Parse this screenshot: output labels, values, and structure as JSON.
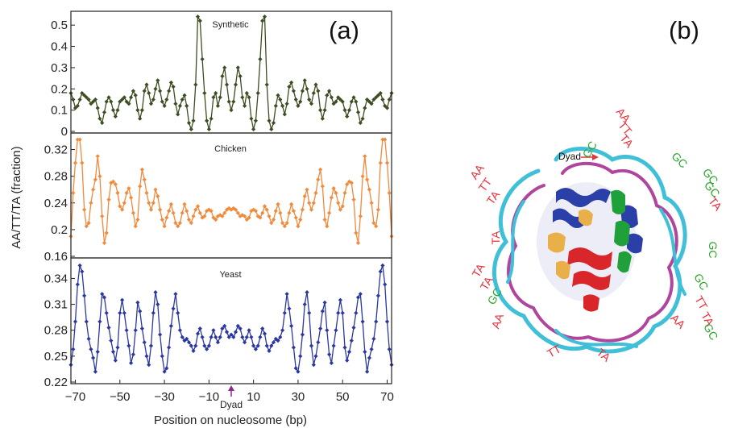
{
  "figure": {
    "panel_a_label": "(a)",
    "panel_b_label": "(b)",
    "dyad_axis_label": "Dyad",
    "dyad_structure_label": "Dyad"
  },
  "colors": {
    "synthetic": "#3d4d22",
    "chicken": "#f08a3c",
    "yeast": "#2b37a0",
    "dyad_arrow": "#8b2a8b",
    "dna_strand_1": "#3fbfd8",
    "dna_strand_2": "#b0459e",
    "text_red": "#e8313d",
    "text_green": "#2aa42a"
  },
  "chart_data": {
    "type": "line",
    "xlabel": "Position on nucleosome (bp)",
    "ylabel": "AA/TT/TA (fraction)",
    "xlim": [
      -72,
      72
    ],
    "xticks": [
      -70,
      -50,
      -30,
      -10,
      10,
      30,
      50,
      70
    ],
    "xtick_labels": [
      "−70",
      "−50",
      "−30",
      "−10",
      "10",
      "30",
      "50",
      "70"
    ],
    "panels": [
      {
        "name": "Synthetic",
        "ylim": [
          0,
          0.55
        ],
        "yticks": [
          0,
          0.1,
          0.2,
          0.3,
          0.4,
          0.5
        ],
        "ytick_labels": [
          "0",
          "0.1",
          "0.2",
          "0.3",
          "0.4",
          "0.5"
        ],
        "x": [
          -72,
          -71,
          -70,
          -69,
          -68,
          -67,
          -66,
          -65,
          -64,
          -63,
          -62,
          -61,
          -60,
          -59,
          -58,
          -57,
          -56,
          -55,
          -54,
          -53,
          -52,
          -51,
          -50,
          -49,
          -48,
          -47,
          -46,
          -45,
          -44,
          -43,
          -42,
          -41,
          -40,
          -39,
          -38,
          -37,
          -36,
          -35,
          -34,
          -33,
          -32,
          -31,
          -30,
          -29,
          -28,
          -27,
          -26,
          -25,
          -24,
          -23,
          -22,
          -21,
          -20,
          -19,
          -18,
          -17,
          -16,
          -15,
          -14,
          -13,
          -12,
          -11,
          -10,
          -9,
          -8,
          -7,
          -6,
          -5,
          -4,
          -3,
          -2,
          -1,
          0,
          1,
          2,
          3,
          4,
          5,
          6,
          7,
          8,
          9,
          10,
          11,
          12,
          13,
          14,
          15,
          16,
          17,
          18,
          19,
          20,
          21,
          22,
          23,
          24,
          25,
          26,
          27,
          28,
          29,
          30,
          31,
          32,
          33,
          34,
          35,
          36,
          37,
          38,
          39,
          40,
          41,
          42,
          43,
          44,
          45,
          46,
          47,
          48,
          49,
          50,
          51,
          52,
          53,
          54,
          55,
          56,
          57,
          58,
          59,
          60,
          61,
          62,
          63,
          64,
          65,
          66,
          67,
          68,
          69,
          70,
          71,
          72
        ],
        "y": [
          0.18,
          0.15,
          0.11,
          0.12,
          0.15,
          0.18,
          0.17,
          0.16,
          0.15,
          0.13,
          0.14,
          0.15,
          0.11,
          0.06,
          0.04,
          0.09,
          0.14,
          0.16,
          0.14,
          0.1,
          0.07,
          0.1,
          0.14,
          0.15,
          0.16,
          0.14,
          0.13,
          0.16,
          0.19,
          0.17,
          0.1,
          0.06,
          0.1,
          0.19,
          0.22,
          0.18,
          0.13,
          0.15,
          0.2,
          0.24,
          0.19,
          0.14,
          0.12,
          0.15,
          0.19,
          0.23,
          0.21,
          0.13,
          0.08,
          0.12,
          0.15,
          0.17,
          0.12,
          0.04,
          0.01,
          0.05,
          0.22,
          0.54,
          0.52,
          0.34,
          0.18,
          0.05,
          0.01,
          0.06,
          0.16,
          0.18,
          0.12,
          0.16,
          0.26,
          0.3,
          0.22,
          0.14,
          0.1,
          0.14,
          0.22,
          0.3,
          0.26,
          0.16,
          0.12,
          0.18,
          0.16,
          0.06,
          0.01,
          0.05,
          0.18,
          0.34,
          0.52,
          0.54,
          0.22,
          0.05,
          0.01,
          0.04,
          0.12,
          0.17,
          0.15,
          0.12,
          0.08,
          0.13,
          0.21,
          0.23,
          0.19,
          0.15,
          0.12,
          0.14,
          0.19,
          0.24,
          0.2,
          0.15,
          0.13,
          0.18,
          0.22,
          0.19,
          0.1,
          0.06,
          0.1,
          0.17,
          0.19,
          0.16,
          0.13,
          0.14,
          0.16,
          0.15,
          0.14,
          0.1,
          0.07,
          0.1,
          0.14,
          0.16,
          0.14,
          0.09,
          0.04,
          0.06,
          0.11,
          0.15,
          0.14,
          0.13,
          0.15,
          0.16,
          0.17,
          0.18,
          0.15,
          0.12,
          0.11,
          0.15,
          0.18
        ]
      },
      {
        "name": "Chicken",
        "ylim": [
          0.16,
          0.34
        ],
        "yticks": [
          0.16,
          0.2,
          0.24,
          0.28,
          0.32
        ],
        "ytick_labels": [
          "0.16",
          "0.2",
          "0.24",
          "0.28",
          "0.32"
        ],
        "x": [
          -72,
          -71,
          -70,
          -69,
          -68,
          -67,
          -66,
          -65,
          -64,
          -63,
          -62,
          -61,
          -60,
          -59,
          -58,
          -57,
          -56,
          -55,
          -54,
          -53,
          -52,
          -51,
          -50,
          -49,
          -48,
          -47,
          -46,
          -45,
          -44,
          -43,
          -42,
          -41,
          -40,
          -39,
          -38,
          -37,
          -36,
          -35,
          -34,
          -33,
          -32,
          -31,
          -30,
          -29,
          -28,
          -27,
          -26,
          -25,
          -24,
          -23,
          -22,
          -21,
          -20,
          -19,
          -18,
          -17,
          -16,
          -15,
          -14,
          -13,
          -12,
          -11,
          -10,
          -9,
          -8,
          -7,
          -6,
          -5,
          -4,
          -3,
          -2,
          -1,
          0,
          1,
          2,
          3,
          4,
          5,
          6,
          7,
          8,
          9,
          10,
          11,
          12,
          13,
          14,
          15,
          16,
          17,
          18,
          19,
          20,
          21,
          22,
          23,
          24,
          25,
          26,
          27,
          28,
          29,
          30,
          31,
          32,
          33,
          34,
          35,
          36,
          37,
          38,
          39,
          40,
          41,
          42,
          43,
          44,
          45,
          46,
          47,
          48,
          49,
          50,
          51,
          52,
          53,
          54,
          55,
          56,
          57,
          58,
          59,
          60,
          61,
          62,
          63,
          64,
          65,
          66,
          67,
          68,
          69,
          70,
          71,
          72
        ],
        "y": [
          0.19,
          0.255,
          0.3,
          0.335,
          0.335,
          0.3,
          0.23,
          0.205,
          0.21,
          0.24,
          0.26,
          0.275,
          0.31,
          0.28,
          0.22,
          0.18,
          0.195,
          0.245,
          0.27,
          0.272,
          0.268,
          0.255,
          0.235,
          0.23,
          0.24,
          0.255,
          0.262,
          0.248,
          0.225,
          0.205,
          0.215,
          0.265,
          0.29,
          0.275,
          0.255,
          0.24,
          0.23,
          0.24,
          0.26,
          0.25,
          0.23,
          0.215,
          0.205,
          0.218,
          0.228,
          0.238,
          0.225,
          0.21,
          0.205,
          0.21,
          0.225,
          0.238,
          0.228,
          0.215,
          0.21,
          0.22,
          0.23,
          0.235,
          0.225,
          0.218,
          0.22,
          0.228,
          0.23,
          0.228,
          0.218,
          0.215,
          0.22,
          0.222,
          0.22,
          0.225,
          0.23,
          0.232,
          0.23,
          0.232,
          0.23,
          0.225,
          0.22,
          0.222,
          0.22,
          0.215,
          0.218,
          0.228,
          0.23,
          0.228,
          0.22,
          0.218,
          0.225,
          0.235,
          0.23,
          0.22,
          0.21,
          0.215,
          0.228,
          0.238,
          0.225,
          0.21,
          0.205,
          0.21,
          0.225,
          0.238,
          0.228,
          0.218,
          0.205,
          0.215,
          0.23,
          0.25,
          0.26,
          0.24,
          0.23,
          0.24,
          0.255,
          0.275,
          0.29,
          0.265,
          0.215,
          0.205,
          0.225,
          0.248,
          0.262,
          0.255,
          0.24,
          0.23,
          0.235,
          0.255,
          0.268,
          0.272,
          0.27,
          0.245,
          0.195,
          0.18,
          0.22,
          0.28,
          0.31,
          0.275,
          0.26,
          0.24,
          0.21,
          0.205,
          0.23,
          0.3,
          0.335,
          0.335,
          0.3,
          0.255,
          0.19
        ]
      },
      {
        "name": "Yeast",
        "ylim": [
          0.22,
          0.36
        ],
        "yticks": [
          0.22,
          0.25,
          0.28,
          0.31,
          0.34
        ],
        "ytick_labels": [
          "0.22",
          "0.25",
          "0.28",
          "0.31",
          "0.34"
        ],
        "x": [
          -72,
          -71,
          -70,
          -69,
          -68,
          -67,
          -66,
          -65,
          -64,
          -63,
          -62,
          -61,
          -60,
          -59,
          -58,
          -57,
          -56,
          -55,
          -54,
          -53,
          -52,
          -51,
          -50,
          -49,
          -48,
          -47,
          -46,
          -45,
          -44,
          -43,
          -42,
          -41,
          -40,
          -39,
          -38,
          -37,
          -36,
          -35,
          -34,
          -33,
          -32,
          -31,
          -30,
          -29,
          -28,
          -27,
          -26,
          -25,
          -24,
          -23,
          -22,
          -21,
          -20,
          -19,
          -18,
          -17,
          -16,
          -15,
          -14,
          -13,
          -12,
          -11,
          -10,
          -9,
          -8,
          -7,
          -6,
          -5,
          -4,
          -3,
          -2,
          -1,
          0,
          1,
          2,
          3,
          4,
          5,
          6,
          7,
          8,
          9,
          10,
          11,
          12,
          13,
          14,
          15,
          16,
          17,
          18,
          19,
          20,
          21,
          22,
          23,
          24,
          25,
          26,
          27,
          28,
          29,
          30,
          31,
          32,
          33,
          34,
          35,
          36,
          37,
          38,
          39,
          40,
          41,
          42,
          43,
          44,
          45,
          46,
          47,
          48,
          49,
          50,
          51,
          52,
          53,
          54,
          55,
          56,
          57,
          58,
          59,
          60,
          61,
          62,
          63,
          64,
          65,
          66,
          67,
          68,
          69,
          70,
          71,
          72
        ],
        "y": [
          0.24,
          0.258,
          0.29,
          0.333,
          0.355,
          0.348,
          0.32,
          0.29,
          0.27,
          0.258,
          0.248,
          0.232,
          0.255,
          0.29,
          0.322,
          0.318,
          0.3,
          0.283,
          0.268,
          0.255,
          0.245,
          0.26,
          0.3,
          0.315,
          0.3,
          0.28,
          0.262,
          0.242,
          0.252,
          0.28,
          0.312,
          0.302,
          0.282,
          0.266,
          0.25,
          0.24,
          0.262,
          0.3,
          0.324,
          0.31,
          0.275,
          0.25,
          0.232,
          0.236,
          0.26,
          0.285,
          0.305,
          0.322,
          0.3,
          0.28,
          0.272,
          0.268,
          0.27,
          0.266,
          0.262,
          0.256,
          0.262,
          0.276,
          0.282,
          0.272,
          0.262,
          0.258,
          0.262,
          0.272,
          0.28,
          0.272,
          0.266,
          0.272,
          0.282,
          0.285,
          0.278,
          0.272,
          0.275,
          0.272,
          0.278,
          0.285,
          0.282,
          0.272,
          0.266,
          0.272,
          0.28,
          0.272,
          0.262,
          0.258,
          0.262,
          0.272,
          0.282,
          0.276,
          0.262,
          0.256,
          0.262,
          0.266,
          0.27,
          0.268,
          0.272,
          0.28,
          0.3,
          0.322,
          0.305,
          0.285,
          0.26,
          0.236,
          0.232,
          0.25,
          0.275,
          0.31,
          0.324,
          0.3,
          0.262,
          0.24,
          0.25,
          0.266,
          0.282,
          0.302,
          0.312,
          0.28,
          0.252,
          0.242,
          0.262,
          0.28,
          0.3,
          0.315,
          0.3,
          0.26,
          0.245,
          0.255,
          0.268,
          0.283,
          0.3,
          0.318,
          0.322,
          0.29,
          0.255,
          0.232,
          0.248,
          0.258,
          0.27,
          0.29,
          0.32,
          0.348,
          0.355,
          0.333,
          0.29,
          0.258,
          0.24
        ]
      }
    ]
  },
  "structure": {
    "sequence_labels": [
      {
        "text": "AA",
        "color": "red"
      },
      {
        "text": "TT",
        "color": "red"
      },
      {
        "text": "TA",
        "color": "red"
      },
      {
        "text": "GC",
        "color": "green"
      },
      {
        "text": "GC",
        "color": "green"
      },
      {
        "text": "AA",
        "color": "red"
      },
      {
        "text": "TT",
        "color": "red"
      },
      {
        "text": "TA",
        "color": "red"
      },
      {
        "text": "GC",
        "color": "green"
      },
      {
        "text": "GC",
        "color": "green"
      },
      {
        "text": "TA",
        "color": "red"
      },
      {
        "text": "TA",
        "color": "red"
      },
      {
        "text": "GC",
        "color": "green"
      },
      {
        "text": "TA",
        "color": "red"
      },
      {
        "text": "TA",
        "color": "red"
      },
      {
        "text": "GC",
        "color": "green"
      },
      {
        "text": "GC",
        "color": "green"
      },
      {
        "text": "AA",
        "color": "red"
      },
      {
        "text": "TT",
        "color": "red"
      },
      {
        "text": "TA",
        "color": "red"
      },
      {
        "text": "GC",
        "color": "green"
      },
      {
        "text": "AA",
        "color": "red"
      },
      {
        "text": "TT",
        "color": "red"
      },
      {
        "text": "TA",
        "color": "red"
      }
    ]
  }
}
